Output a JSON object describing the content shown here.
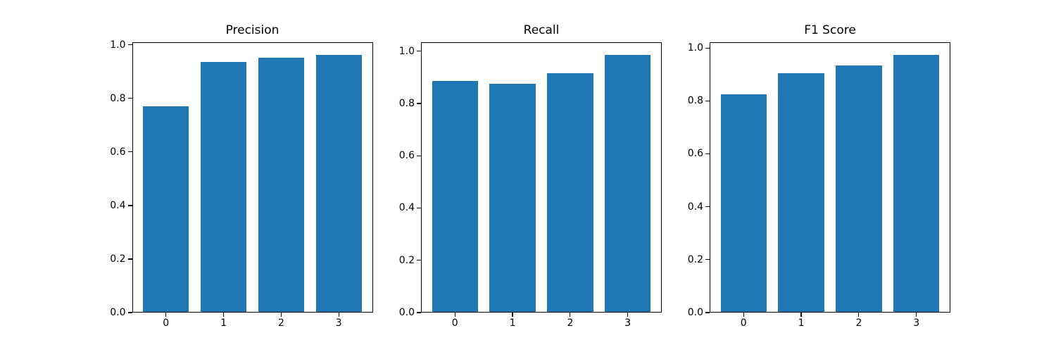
{
  "figure": {
    "background_color": "#ffffff",
    "bar_color": "#1f77b4",
    "frame_color": "#000000",
    "text_color": "#000000"
  },
  "chart_data": [
    {
      "type": "bar",
      "title": "Precision",
      "categories": [
        "0",
        "1",
        "2",
        "3"
      ],
      "values": [
        0.772,
        0.937,
        0.951,
        0.962
      ],
      "xlabel": "",
      "ylabel": "",
      "xlim": [
        -0.59,
        3.59
      ],
      "ylim": [
        0,
        1.0101
      ],
      "bar_width": 0.8,
      "ytick_values": [
        0.0,
        0.2,
        0.4,
        0.6,
        0.8,
        1.0
      ],
      "ytick_labels": [
        "0.0",
        "0.2",
        "0.4",
        "0.6",
        "0.8",
        "1.0"
      ],
      "grid": false,
      "legend": null
    },
    {
      "type": "bar",
      "title": "Recall",
      "categories": [
        "0",
        "1",
        "2",
        "3"
      ],
      "values": [
        0.886,
        0.875,
        0.917,
        0.985
      ],
      "xlabel": "",
      "ylabel": "",
      "xlim": [
        -0.59,
        3.59
      ],
      "ylim": [
        0,
        1.0343
      ],
      "bar_width": 0.8,
      "ytick_values": [
        0.0,
        0.2,
        0.4,
        0.6,
        0.8,
        1.0
      ],
      "ytick_labels": [
        "0.0",
        "0.2",
        "0.4",
        "0.6",
        "0.8",
        "1.0"
      ],
      "grid": false,
      "legend": null
    },
    {
      "type": "bar",
      "title": "F1 Score",
      "categories": [
        "0",
        "1",
        "2",
        "3"
      ],
      "values": [
        0.826,
        0.906,
        0.933,
        0.973
      ],
      "xlabel": "",
      "ylabel": "",
      "xlim": [
        -0.59,
        3.59
      ],
      "ylim": [
        0,
        1.0217
      ],
      "bar_width": 0.8,
      "ytick_values": [
        0.0,
        0.2,
        0.4,
        0.6,
        0.8,
        1.0
      ],
      "ytick_labels": [
        "0.0",
        "0.2",
        "0.4",
        "0.6",
        "0.8",
        "1.0"
      ],
      "grid": false,
      "legend": null
    }
  ]
}
